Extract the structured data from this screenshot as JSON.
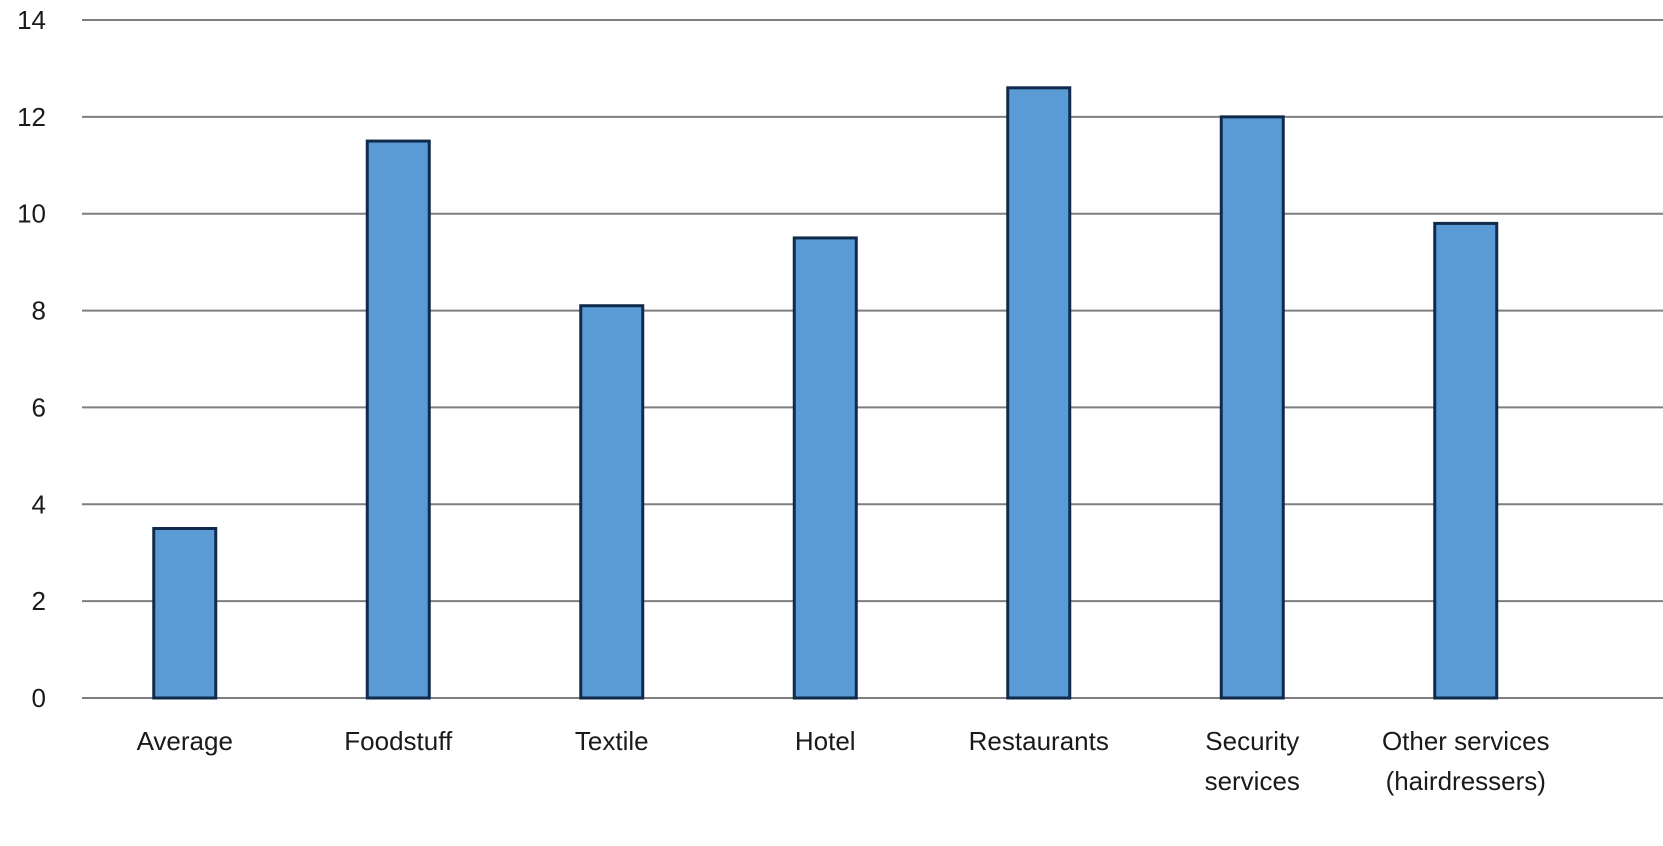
{
  "chart_data": {
    "type": "bar",
    "title": "",
    "xlabel": "",
    "ylabel": "",
    "categories": [
      "Average",
      "Foodstuff",
      "Textile",
      "Hotel",
      "Restaurants",
      "Security services",
      "Other services (hairdressers)"
    ],
    "category_lines": [
      [
        "Average"
      ],
      [
        "Foodstuff"
      ],
      [
        "Textile"
      ],
      [
        "Hotel"
      ],
      [
        "Restaurants"
      ],
      [
        "Security",
        "services"
      ],
      [
        "Other services",
        "(hairdressers)"
      ]
    ],
    "values": [
      3.5,
      11.5,
      8.1,
      9.5,
      12.6,
      12.0,
      9.8
    ],
    "ylim": [
      0,
      14
    ],
    "yticks": [
      0,
      2,
      4,
      6,
      8,
      10,
      12,
      14
    ],
    "grid": true,
    "legend": "none",
    "colors": {
      "bar_fill": "#5B9BD5",
      "bar_edge": "#0F2A4A",
      "grid": "#7F7F7F",
      "text": "#1A1A1A"
    }
  }
}
